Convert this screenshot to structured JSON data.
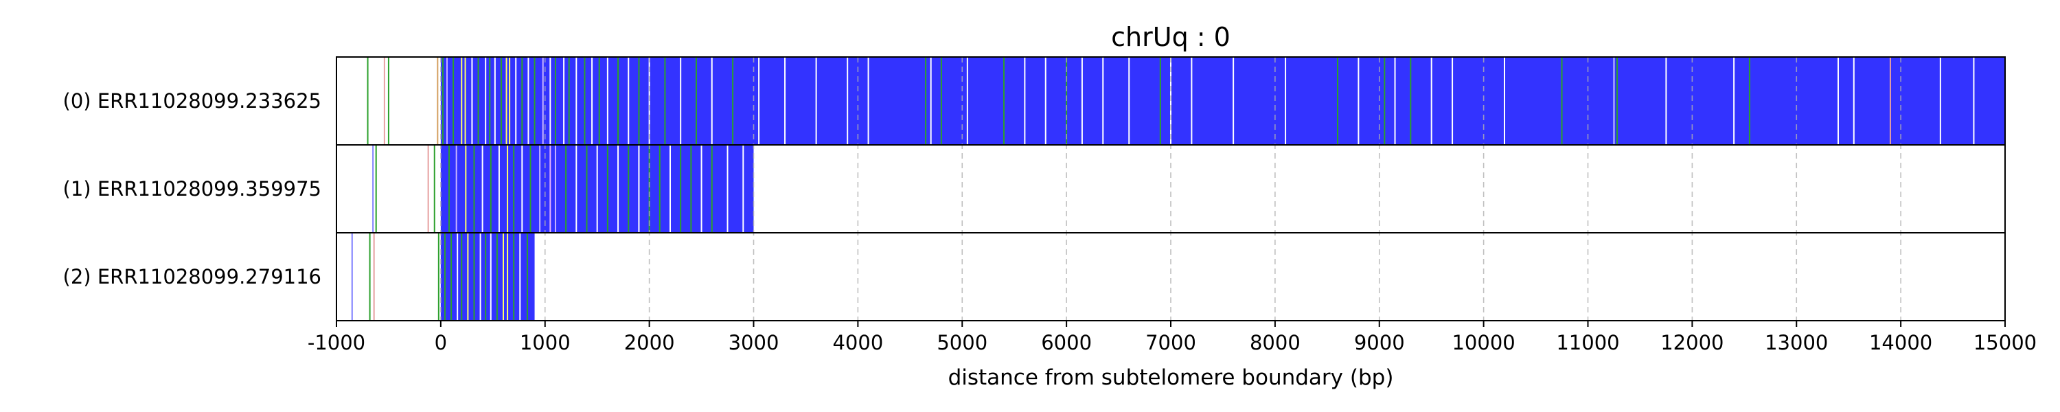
{
  "chart_data": {
    "type": "read-track",
    "title": "chrUq : 0",
    "xlabel": "distance from subtelomere boundary (bp)",
    "xlim": [
      -1000,
      15000
    ],
    "xticks": [
      -1000,
      0,
      1000,
      2000,
      3000,
      4000,
      5000,
      6000,
      7000,
      8000,
      9000,
      10000,
      11000,
      12000,
      13000,
      14000,
      15000
    ],
    "grid": "vertical dashed",
    "base_color": "#3333ff",
    "reads": [
      {
        "label": "(0) ERR11028099.233625",
        "start": 0,
        "end": 15000,
        "lines": [
          {
            "x": -700,
            "color": "#2ca02c"
          },
          {
            "x": -540,
            "color": "#e6a0a0"
          },
          {
            "x": -500,
            "color": "#2ca02c"
          },
          {
            "x": -30,
            "color": "#d4a060"
          },
          {
            "x": 20,
            "color": "#2ca02c"
          },
          {
            "x": 60,
            "color": "#c8b4ff"
          },
          {
            "x": 120,
            "color": "#2ca02c"
          },
          {
            "x": 200,
            "color": "#ffff66"
          },
          {
            "x": 235,
            "color": "#ffff66"
          },
          {
            "x": 300,
            "color": "#ffffff"
          },
          {
            "x": 360,
            "color": "#2ca02c"
          },
          {
            "x": 430,
            "color": "#ffffff"
          },
          {
            "x": 470,
            "color": "#2ca02c"
          },
          {
            "x": 520,
            "color": "#ffffff"
          },
          {
            "x": 580,
            "color": "#2ca02c"
          },
          {
            "x": 630,
            "color": "#ffff66"
          },
          {
            "x": 660,
            "color": "#ffff66"
          },
          {
            "x": 720,
            "color": "#ffffff"
          },
          {
            "x": 780,
            "color": "#2ca02c"
          },
          {
            "x": 840,
            "color": "#ffffff"
          },
          {
            "x": 900,
            "color": "#2ca02c"
          },
          {
            "x": 980,
            "color": "#c8b4ff"
          },
          {
            "x": 1050,
            "color": "#ffffff"
          },
          {
            "x": 1100,
            "color": "#2ca02c"
          },
          {
            "x": 1180,
            "color": "#ffffff"
          },
          {
            "x": 1230,
            "color": "#2ca02c"
          },
          {
            "x": 1300,
            "color": "#ffffff"
          },
          {
            "x": 1380,
            "color": "#2ca02c"
          },
          {
            "x": 1450,
            "color": "#ffffff"
          },
          {
            "x": 1520,
            "color": "#2ca02c"
          },
          {
            "x": 1600,
            "color": "#ffffff"
          },
          {
            "x": 1700,
            "color": "#2ca02c"
          },
          {
            "x": 1800,
            "color": "#ffffff"
          },
          {
            "x": 1900,
            "color": "#2ca02c"
          },
          {
            "x": 2000,
            "color": "#ffffff"
          },
          {
            "x": 2150,
            "color": "#2ca02c"
          },
          {
            "x": 2300,
            "color": "#ffffff"
          },
          {
            "x": 2450,
            "color": "#2ca02c"
          },
          {
            "x": 2600,
            "color": "#ffffff"
          },
          {
            "x": 2800,
            "color": "#2ca02c"
          },
          {
            "x": 3050,
            "color": "#ffffff"
          },
          {
            "x": 3300,
            "color": "#ffffff"
          },
          {
            "x": 3600,
            "color": "#ffffff"
          },
          {
            "x": 3900,
            "color": "#ffffff"
          },
          {
            "x": 4100,
            "color": "#ffffff"
          },
          {
            "x": 4650,
            "color": "#2ca02c"
          },
          {
            "x": 4700,
            "color": "#ffffff"
          },
          {
            "x": 4800,
            "color": "#2ca02c"
          },
          {
            "x": 5050,
            "color": "#ffffff"
          },
          {
            "x": 5400,
            "color": "#2ca02c"
          },
          {
            "x": 5600,
            "color": "#ffffff"
          },
          {
            "x": 5800,
            "color": "#ffffff"
          },
          {
            "x": 6000,
            "color": "#2ca02c"
          },
          {
            "x": 6150,
            "color": "#ffffff"
          },
          {
            "x": 6350,
            "color": "#ffffff"
          },
          {
            "x": 6600,
            "color": "#ffffff"
          },
          {
            "x": 6900,
            "color": "#2ca02c"
          },
          {
            "x": 7000,
            "color": "#ffffff"
          },
          {
            "x": 7200,
            "color": "#ffffff"
          },
          {
            "x": 7600,
            "color": "#ffffff"
          },
          {
            "x": 8100,
            "color": "#ffffff"
          },
          {
            "x": 8600,
            "color": "#2ca02c"
          },
          {
            "x": 8800,
            "color": "#ffffff"
          },
          {
            "x": 9050,
            "color": "#2ca02c"
          },
          {
            "x": 9150,
            "color": "#ffffff"
          },
          {
            "x": 9300,
            "color": "#2ca02c"
          },
          {
            "x": 9500,
            "color": "#ffffff"
          },
          {
            "x": 9700,
            "color": "#ffffff"
          },
          {
            "x": 10200,
            "color": "#ffffff"
          },
          {
            "x": 10750,
            "color": "#2ca02c"
          },
          {
            "x": 11250,
            "color": "#c8c8ff"
          },
          {
            "x": 11280,
            "color": "#2ca02c"
          },
          {
            "x": 11750,
            "color": "#ffffff"
          },
          {
            "x": 12400,
            "color": "#ffffff"
          },
          {
            "x": 12550,
            "color": "#2ca02c"
          },
          {
            "x": 13400,
            "color": "#ffffff"
          },
          {
            "x": 13550,
            "color": "#ffffff"
          },
          {
            "x": 13900,
            "color": "#e6a0a0"
          },
          {
            "x": 14380,
            "color": "#ffffff"
          },
          {
            "x": 14700,
            "color": "#ffffff"
          }
        ]
      },
      {
        "label": "(1) ERR11028099.359975",
        "start": 0,
        "end": 3000,
        "lines": [
          {
            "x": -650,
            "color": "#8080ff"
          },
          {
            "x": -620,
            "color": "#2ca02c"
          },
          {
            "x": -120,
            "color": "#e6a0a0"
          },
          {
            "x": -60,
            "color": "#2ca02c"
          },
          {
            "x": 80,
            "color": "#2ca02c"
          },
          {
            "x": 150,
            "color": "#c8b4ff"
          },
          {
            "x": 240,
            "color": "#ffff66"
          },
          {
            "x": 320,
            "color": "#2ca02c"
          },
          {
            "x": 400,
            "color": "#ffffff"
          },
          {
            "x": 480,
            "color": "#2ca02c"
          },
          {
            "x": 560,
            "color": "#ffffff"
          },
          {
            "x": 640,
            "color": "#ffff66"
          },
          {
            "x": 700,
            "color": "#2ca02c"
          },
          {
            "x": 780,
            "color": "#ffffff"
          },
          {
            "x": 860,
            "color": "#2ca02c"
          },
          {
            "x": 950,
            "color": "#c8b4ff"
          },
          {
            "x": 1050,
            "color": "#e6b4ff"
          },
          {
            "x": 1100,
            "color": "#c8b4ff"
          },
          {
            "x": 1200,
            "color": "#2ca02c"
          },
          {
            "x": 1300,
            "color": "#ffffff"
          },
          {
            "x": 1400,
            "color": "#2ca02c"
          },
          {
            "x": 1500,
            "color": "#ffffff"
          },
          {
            "x": 1600,
            "color": "#2ca02c"
          },
          {
            "x": 1700,
            "color": "#ffffff"
          },
          {
            "x": 1800,
            "color": "#2ca02c"
          },
          {
            "x": 1900,
            "color": "#ffffff"
          },
          {
            "x": 2000,
            "color": "#2ca02c"
          },
          {
            "x": 2100,
            "color": "#2ca02c"
          },
          {
            "x": 2200,
            "color": "#ffffff"
          },
          {
            "x": 2300,
            "color": "#2ca02c"
          },
          {
            "x": 2400,
            "color": "#2ca02c"
          },
          {
            "x": 2500,
            "color": "#ffffff"
          },
          {
            "x": 2600,
            "color": "#2ca02c"
          },
          {
            "x": 2750,
            "color": "#ffffff"
          },
          {
            "x": 2900,
            "color": "#ffffff"
          }
        ]
      },
      {
        "label": "(2) ERR11028099.279116",
        "start": 0,
        "end": 900,
        "lines": [
          {
            "x": -850,
            "color": "#8080ff"
          },
          {
            "x": -680,
            "color": "#2ca02c"
          },
          {
            "x": -640,
            "color": "#e6a0a0"
          },
          {
            "x": -20,
            "color": "#2ca02c"
          },
          {
            "x": 40,
            "color": "#2ca02c"
          },
          {
            "x": 100,
            "color": "#2ca02c"
          },
          {
            "x": 160,
            "color": "#ffffff"
          },
          {
            "x": 200,
            "color": "#2ca02c"
          },
          {
            "x": 260,
            "color": "#ffff66"
          },
          {
            "x": 320,
            "color": "#2ca02c"
          },
          {
            "x": 380,
            "color": "#ffffff"
          },
          {
            "x": 430,
            "color": "#2ca02c"
          },
          {
            "x": 480,
            "color": "#ffffff"
          },
          {
            "x": 540,
            "color": "#2ca02c"
          },
          {
            "x": 600,
            "color": "#ffff66"
          },
          {
            "x": 640,
            "color": "#ffff66"
          },
          {
            "x": 700,
            "color": "#2ca02c"
          },
          {
            "x": 760,
            "color": "#ffffff"
          },
          {
            "x": 830,
            "color": "#2ca02c"
          }
        ]
      }
    ]
  }
}
